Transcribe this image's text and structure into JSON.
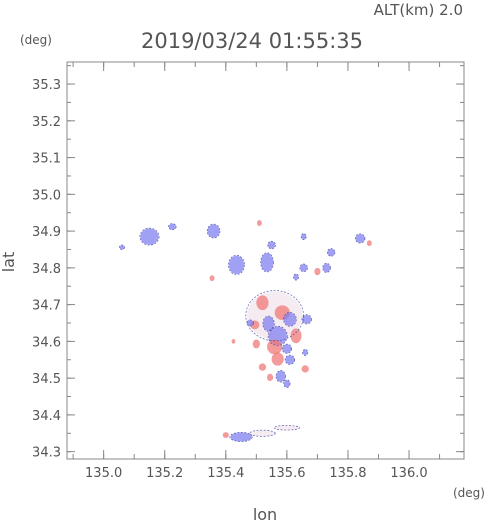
{
  "chart_data": {
    "type": "heatmap",
    "alt_label": "ALT(km) 2.0",
    "title": "2019/03/24 01:55:35",
    "y_unit": "(deg)",
    "x_unit": "(deg)",
    "xlabel": "lon",
    "ylabel": "lat",
    "xlim": [
      134.88,
      136.18
    ],
    "ylim": [
      34.28,
      35.36
    ],
    "x_ticks": [
      135.0,
      135.2,
      135.4,
      135.6,
      135.8,
      136.0
    ],
    "y_ticks": [
      34.3,
      34.4,
      34.5,
      34.6,
      34.7,
      34.8,
      34.9,
      35.0,
      35.1,
      35.2,
      35.3
    ],
    "grid": false,
    "colors": {
      "positive": "#f07878",
      "negative": "#8080f0",
      "contour": "#3a3aa0",
      "axis": "#888888"
    },
    "blobs": [
      {
        "lon": 135.15,
        "lat": 34.885,
        "rx": 0.03,
        "ry": 0.022,
        "sign": "neg"
      },
      {
        "lon": 135.225,
        "lat": 34.912,
        "rx": 0.012,
        "ry": 0.008,
        "sign": "neg"
      },
      {
        "lon": 135.06,
        "lat": 34.856,
        "rx": 0.008,
        "ry": 0.006,
        "sign": "neg"
      },
      {
        "lon": 135.36,
        "lat": 34.9,
        "rx": 0.02,
        "ry": 0.018,
        "sign": "neg"
      },
      {
        "lon": 135.435,
        "lat": 34.808,
        "rx": 0.025,
        "ry": 0.025,
        "sign": "neg"
      },
      {
        "lon": 135.355,
        "lat": 34.772,
        "rx": 0.008,
        "ry": 0.008,
        "sign": "pos"
      },
      {
        "lon": 135.51,
        "lat": 34.922,
        "rx": 0.008,
        "ry": 0.008,
        "sign": "pos"
      },
      {
        "lon": 135.55,
        "lat": 34.862,
        "rx": 0.012,
        "ry": 0.01,
        "sign": "neg"
      },
      {
        "lon": 135.655,
        "lat": 34.885,
        "rx": 0.008,
        "ry": 0.008,
        "sign": "neg"
      },
      {
        "lon": 135.84,
        "lat": 34.88,
        "rx": 0.015,
        "ry": 0.012,
        "sign": "neg"
      },
      {
        "lon": 135.87,
        "lat": 34.867,
        "rx": 0.008,
        "ry": 0.008,
        "sign": "pos"
      },
      {
        "lon": 135.745,
        "lat": 34.842,
        "rx": 0.012,
        "ry": 0.01,
        "sign": "neg"
      },
      {
        "lon": 135.73,
        "lat": 34.8,
        "rx": 0.012,
        "ry": 0.012,
        "sign": "neg"
      },
      {
        "lon": 135.655,
        "lat": 34.8,
        "rx": 0.012,
        "ry": 0.01,
        "sign": "neg"
      },
      {
        "lon": 135.7,
        "lat": 34.79,
        "rx": 0.01,
        "ry": 0.01,
        "sign": "pos"
      },
      {
        "lon": 135.63,
        "lat": 34.775,
        "rx": 0.008,
        "ry": 0.008,
        "sign": "neg"
      },
      {
        "lon": 135.535,
        "lat": 34.815,
        "rx": 0.02,
        "ry": 0.025,
        "sign": "neg"
      },
      {
        "lon": 135.56,
        "lat": 34.67,
        "rx": 0.09,
        "ry": 0.065,
        "sign": "light"
      },
      {
        "lon": 135.52,
        "lat": 34.705,
        "rx": 0.02,
        "ry": 0.02,
        "sign": "pos"
      },
      {
        "lon": 135.585,
        "lat": 34.678,
        "rx": 0.025,
        "ry": 0.02,
        "sign": "pos"
      },
      {
        "lon": 135.61,
        "lat": 34.66,
        "rx": 0.02,
        "ry": 0.018,
        "sign": "neg"
      },
      {
        "lon": 135.54,
        "lat": 34.648,
        "rx": 0.018,
        "ry": 0.02,
        "sign": "neg"
      },
      {
        "lon": 135.495,
        "lat": 34.645,
        "rx": 0.015,
        "ry": 0.012,
        "sign": "pos"
      },
      {
        "lon": 135.57,
        "lat": 34.615,
        "rx": 0.03,
        "ry": 0.025,
        "sign": "neg"
      },
      {
        "lon": 135.63,
        "lat": 34.615,
        "rx": 0.018,
        "ry": 0.02,
        "sign": "pos"
      },
      {
        "lon": 135.56,
        "lat": 34.585,
        "rx": 0.025,
        "ry": 0.02,
        "sign": "pos"
      },
      {
        "lon": 135.6,
        "lat": 34.58,
        "rx": 0.015,
        "ry": 0.012,
        "sign": "neg"
      },
      {
        "lon": 135.5,
        "lat": 34.593,
        "rx": 0.012,
        "ry": 0.012,
        "sign": "pos"
      },
      {
        "lon": 135.48,
        "lat": 34.65,
        "rx": 0.01,
        "ry": 0.008,
        "sign": "neg"
      },
      {
        "lon": 135.57,
        "lat": 34.552,
        "rx": 0.02,
        "ry": 0.018,
        "sign": "pos"
      },
      {
        "lon": 135.61,
        "lat": 34.55,
        "rx": 0.015,
        "ry": 0.012,
        "sign": "neg"
      },
      {
        "lon": 135.52,
        "lat": 34.53,
        "rx": 0.012,
        "ry": 0.01,
        "sign": "pos"
      },
      {
        "lon": 135.66,
        "lat": 34.525,
        "rx": 0.012,
        "ry": 0.01,
        "sign": "pos"
      },
      {
        "lon": 135.58,
        "lat": 34.505,
        "rx": 0.015,
        "ry": 0.015,
        "sign": "neg"
      },
      {
        "lon": 135.545,
        "lat": 34.502,
        "rx": 0.01,
        "ry": 0.01,
        "sign": "pos"
      },
      {
        "lon": 135.6,
        "lat": 34.485,
        "rx": 0.01,
        "ry": 0.01,
        "sign": "neg"
      },
      {
        "lon": 135.66,
        "lat": 34.57,
        "rx": 0.008,
        "ry": 0.008,
        "sign": "neg"
      },
      {
        "lon": 135.665,
        "lat": 34.66,
        "rx": 0.015,
        "ry": 0.012,
        "sign": "neg"
      },
      {
        "lon": 135.425,
        "lat": 34.6,
        "rx": 0.006,
        "ry": 0.006,
        "sign": "pos"
      },
      {
        "lon": 135.45,
        "lat": 34.34,
        "rx": 0.035,
        "ry": 0.012,
        "sign": "neg"
      },
      {
        "lon": 135.4,
        "lat": 34.345,
        "rx": 0.01,
        "ry": 0.008,
        "sign": "pos"
      },
      {
        "lon": 135.52,
        "lat": 34.35,
        "rx": 0.04,
        "ry": 0.008,
        "sign": "light"
      },
      {
        "lon": 135.6,
        "lat": 34.365,
        "rx": 0.04,
        "ry": 0.006,
        "sign": "light"
      }
    ]
  }
}
